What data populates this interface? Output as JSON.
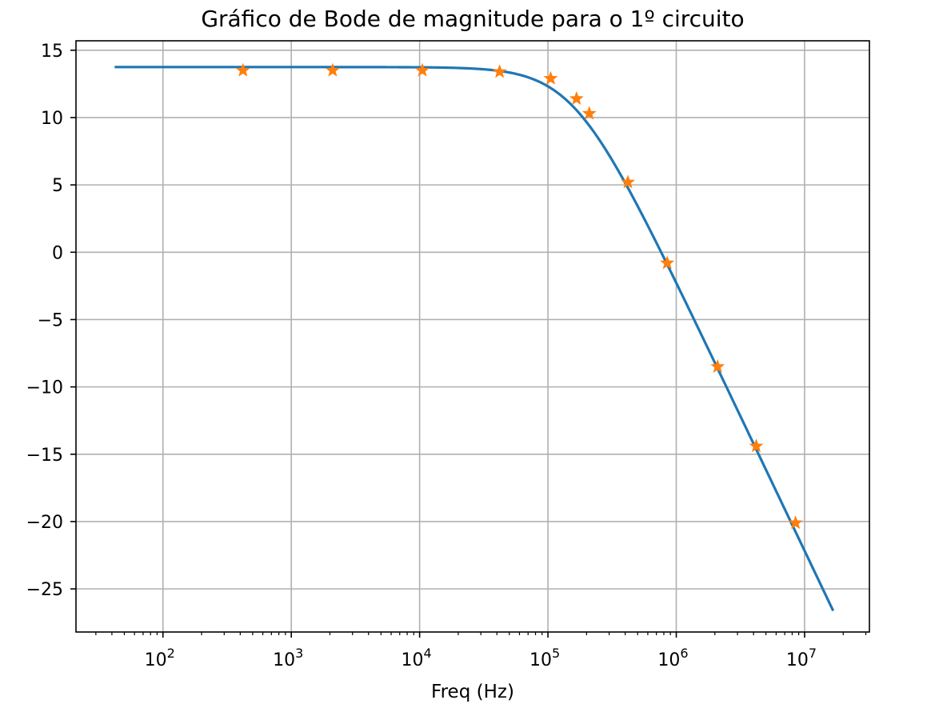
{
  "chart_data": {
    "type": "line",
    "title": "Gráfico de Bode de magnitude para o 1º circuito",
    "xlabel": "Freq (Hz)",
    "ylabel": "",
    "x_scale": "log",
    "xlim": [
      21,
      32000000
    ],
    "ylim": [
      -28.2,
      15.7
    ],
    "grid": true,
    "x_ticks": [
      {
        "value": 100,
        "label": "10",
        "exp": "2"
      },
      {
        "value": 1000,
        "label": "10",
        "exp": "3"
      },
      {
        "value": 10000,
        "label": "10",
        "exp": "4"
      },
      {
        "value": 100000,
        "label": "10",
        "exp": "5"
      },
      {
        "value": 1000000,
        "label": "10",
        "exp": "6"
      },
      {
        "value": 10000000,
        "label": "10",
        "exp": "7"
      }
    ],
    "y_ticks": [
      {
        "value": 15,
        "label": "15"
      },
      {
        "value": 10,
        "label": "10"
      },
      {
        "value": 5,
        "label": "5"
      },
      {
        "value": 0,
        "label": "0"
      },
      {
        "value": -5,
        "label": "−5"
      },
      {
        "value": -10,
        "label": "−10"
      },
      {
        "value": -15,
        "label": "−15"
      },
      {
        "value": -20,
        "label": "−20"
      },
      {
        "value": -25,
        "label": "−25"
      }
    ],
    "series": [
      {
        "style": "line",
        "color": "#1f77b4",
        "model": {
          "dc_gain_db": 13.75,
          "corner_hz": 160000,
          "slope_db_per_decade": -20
        },
        "x_range": [
          42,
          16700000
        ]
      },
      {
        "style": "star-markers",
        "color": "#ff7f0e",
        "points": [
          {
            "x": 420,
            "y": 13.5
          },
          {
            "x": 2100,
            "y": 13.5
          },
          {
            "x": 10500,
            "y": 13.5
          },
          {
            "x": 42000,
            "y": 13.4
          },
          {
            "x": 105000,
            "y": 12.9
          },
          {
            "x": 167000,
            "y": 11.4
          },
          {
            "x": 210000,
            "y": 10.3
          },
          {
            "x": 420000,
            "y": 5.2
          },
          {
            "x": 850000,
            "y": -0.8
          },
          {
            "x": 2100000,
            "y": -8.5
          },
          {
            "x": 4200000,
            "y": -14.4
          },
          {
            "x": 8500000,
            "y": -20.1
          }
        ]
      }
    ]
  }
}
